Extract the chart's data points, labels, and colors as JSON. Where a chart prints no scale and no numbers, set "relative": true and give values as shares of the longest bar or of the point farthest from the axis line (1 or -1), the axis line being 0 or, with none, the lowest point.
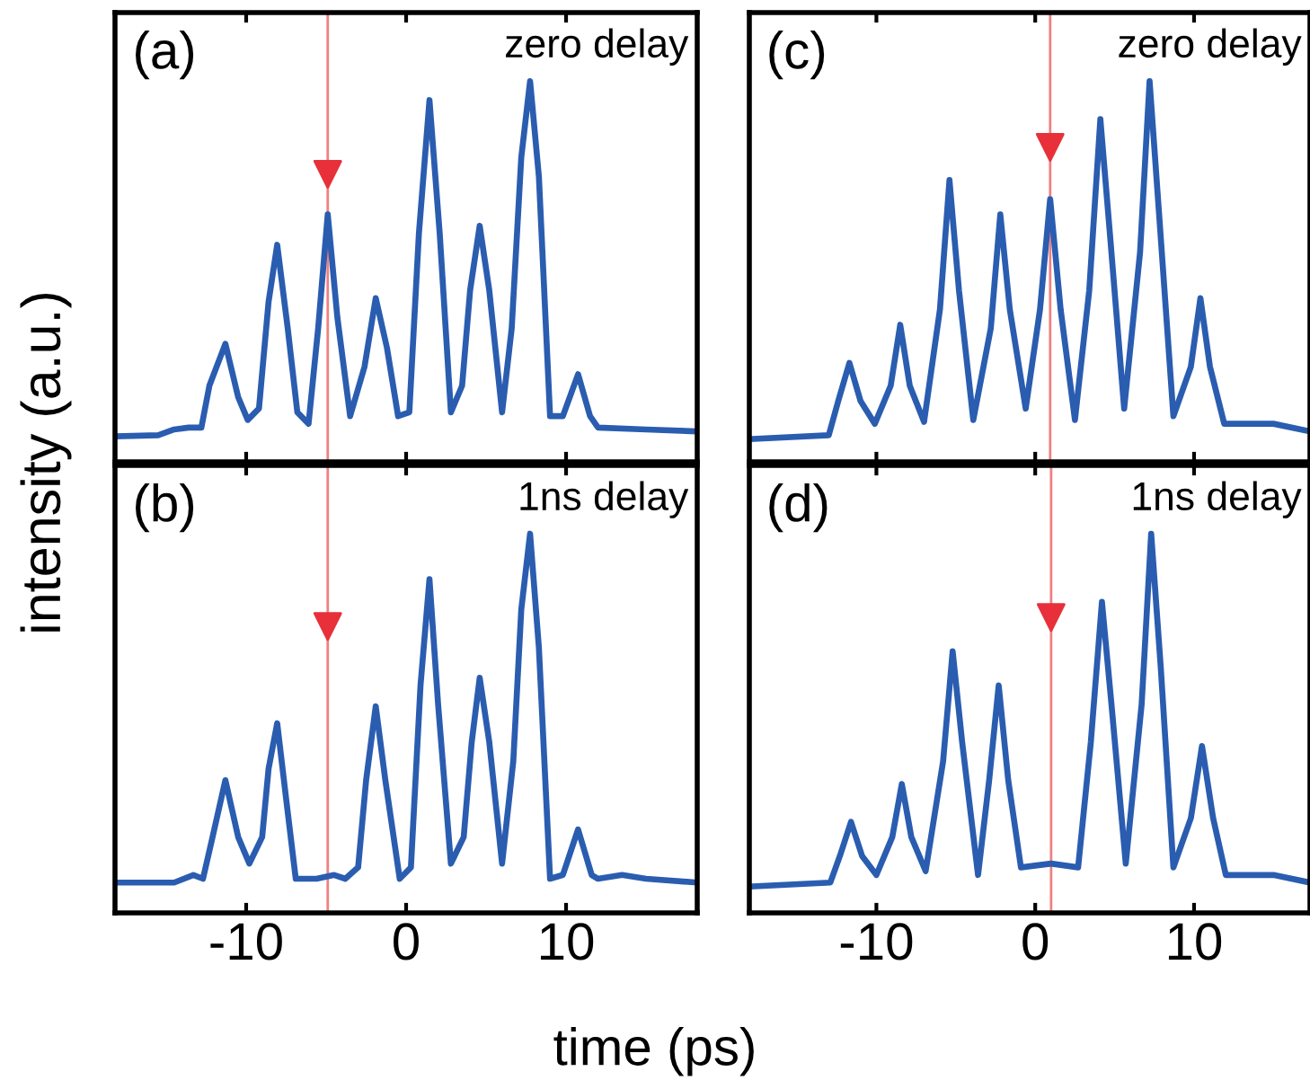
{
  "chart_data": [
    {
      "type": "line",
      "relative": true,
      "ylabel": "intensity (a.u.)",
      "annotations": [
        "(a)",
        "zero delay"
      ],
      "xlim": [
        -18.2,
        18.2
      ],
      "xticks": [
        -10,
        0,
        10
      ],
      "tick_labels": false,
      "x": [
        -18.2,
        -15.5,
        -14.5,
        -13.6,
        -12.8,
        -12.3,
        -11.3,
        -10.5,
        -9.9,
        -9.2,
        -8.6,
        -8.06,
        -7.4,
        -6.8,
        -6.1,
        -5.5,
        -4.9,
        -4.3,
        -3.5,
        -2.6,
        -1.9,
        -1.2,
        -0.5,
        0.2,
        0.8,
        1.46,
        2.1,
        2.8,
        3.5,
        4.0,
        4.6,
        5.2,
        6.0,
        6.6,
        7.2,
        7.75,
        8.3,
        9.0,
        9.8,
        10.75,
        11.5,
        12.0,
        15.0,
        18.2
      ],
      "series": [
        {
          "color": "#2a5db0",
          "values": [
            0.067,
            0.07,
            0.085,
            0.09,
            0.09,
            0.2,
            0.31,
            0.17,
            0.11,
            0.14,
            0.42,
            0.57,
            0.35,
            0.13,
            0.1,
            0.35,
            0.65,
            0.38,
            0.12,
            0.25,
            0.43,
            0.3,
            0.12,
            0.13,
            0.6,
            0.95,
            0.6,
            0.13,
            0.2,
            0.45,
            0.62,
            0.45,
            0.13,
            0.35,
            0.8,
            1.0,
            0.75,
            0.12,
            0.12,
            0.23,
            0.12,
            0.09,
            0.085,
            0.08
          ]
        }
      ],
      "ref_lines": [
        {
          "axis": "x",
          "value": -4.9,
          "color": "#f08080"
        }
      ]
    },
    {
      "type": "line",
      "relative": true,
      "xlabel": "time (ps)",
      "annotations": [
        "(b)",
        "1ns delay"
      ],
      "xlim": [
        -18.2,
        18.2
      ],
      "xticks": [
        -10,
        0,
        10
      ],
      "tick_labels": "x",
      "x": [
        -18.2,
        -14.5,
        -13.3,
        -12.7,
        -12.1,
        -11.3,
        -10.5,
        -9.8,
        -9.0,
        -8.6,
        -8.06,
        -7.5,
        -6.9,
        -5.6,
        -4.5,
        -3.8,
        -3.0,
        -2.5,
        -1.9,
        -1.3,
        -0.4,
        0.3,
        0.9,
        1.46,
        2.0,
        2.8,
        3.6,
        4.1,
        4.6,
        5.2,
        6.0,
        6.7,
        7.2,
        7.75,
        8.3,
        9.0,
        9.8,
        10.75,
        11.6,
        12.0,
        13.5,
        15.0,
        18.2
      ],
      "series": [
        {
          "color": "#2a5db0",
          "values": [
            0.08,
            0.08,
            0.1,
            0.09,
            0.2,
            0.35,
            0.2,
            0.13,
            0.2,
            0.38,
            0.5,
            0.3,
            0.09,
            0.09,
            0.1,
            0.09,
            0.12,
            0.35,
            0.545,
            0.35,
            0.09,
            0.12,
            0.6,
            0.88,
            0.55,
            0.13,
            0.2,
            0.45,
            0.62,
            0.45,
            0.13,
            0.4,
            0.8,
            1.0,
            0.7,
            0.09,
            0.1,
            0.22,
            0.1,
            0.09,
            0.1,
            0.09,
            0.08
          ]
        }
      ],
      "ref_lines": [
        {
          "axis": "x",
          "value": -4.9,
          "color": "#f08080"
        }
      ]
    },
    {
      "type": "line",
      "relative": true,
      "annotations": [
        "(c)",
        "zero delay"
      ],
      "xlim": [
        -18.0,
        17.3
      ],
      "xticks": [
        -10,
        0,
        10
      ],
      "tick_labels": false,
      "x": [
        -17.8,
        -13.0,
        -12.4,
        -11.7,
        -11.0,
        -10.1,
        -9.1,
        -8.5,
        -7.9,
        -7.0,
        -6.0,
        -5.4,
        -4.8,
        -3.9,
        -2.8,
        -2.2,
        -1.6,
        -0.6,
        0.3,
        0.94,
        1.6,
        2.5,
        3.4,
        4.1,
        4.7,
        5.6,
        6.6,
        7.2,
        7.8,
        8.7,
        9.8,
        10.4,
        11.0,
        11.9,
        13.0,
        15.0,
        17.3
      ],
      "series": [
        {
          "color": "#2a5db0",
          "values": [
            0.06,
            0.07,
            0.16,
            0.26,
            0.16,
            0.1,
            0.2,
            0.36,
            0.2,
            0.105,
            0.4,
            0.74,
            0.45,
            0.11,
            0.35,
            0.65,
            0.4,
            0.14,
            0.4,
            0.69,
            0.4,
            0.11,
            0.45,
            0.9,
            0.6,
            0.14,
            0.55,
            1.0,
            0.65,
            0.12,
            0.25,
            0.43,
            0.25,
            0.1,
            0.1,
            0.1,
            0.08
          ]
        }
      ],
      "ref_lines": [
        {
          "axis": "x",
          "value": 0.94,
          "color": "#f08080"
        }
      ]
    },
    {
      "type": "line",
      "relative": true,
      "annotations": [
        "(d)",
        "1ns delay"
      ],
      "xlim": [
        -18.0,
        17.3
      ],
      "xticks": [
        -10,
        0,
        10
      ],
      "tick_labels": "x",
      "x": [
        -17.8,
        -12.9,
        -12.3,
        -11.6,
        -10.9,
        -10.0,
        -9.0,
        -8.4,
        -7.8,
        -6.9,
        -5.8,
        -5.2,
        -4.6,
        -3.6,
        -2.9,
        -2.3,
        -1.7,
        -0.9,
        1.0,
        2.7,
        3.5,
        4.2,
        4.8,
        5.7,
        6.7,
        7.3,
        7.9,
        8.7,
        9.8,
        10.5,
        11.2,
        12.0,
        13.0,
        15.0,
        17.3
      ],
      "series": [
        {
          "color": "#2a5db0",
          "values": [
            0.07,
            0.08,
            0.15,
            0.24,
            0.15,
            0.1,
            0.2,
            0.34,
            0.2,
            0.11,
            0.4,
            0.69,
            0.45,
            0.1,
            0.35,
            0.6,
            0.35,
            0.12,
            0.13,
            0.12,
            0.45,
            0.82,
            0.55,
            0.13,
            0.55,
            1.0,
            0.65,
            0.12,
            0.25,
            0.44,
            0.25,
            0.1,
            0.1,
            0.1,
            0.08
          ]
        }
      ],
      "ref_lines": [
        {
          "axis": "x",
          "value": 1.0,
          "color": "#f08080"
        }
      ]
    }
  ]
}
